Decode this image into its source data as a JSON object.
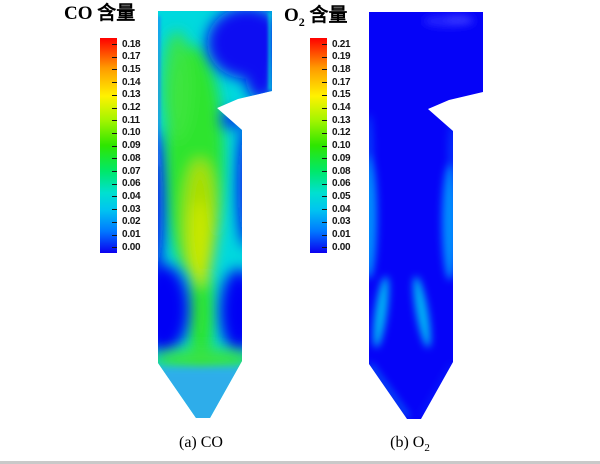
{
  "figure": {
    "left_panel": {
      "title": {
        "pre": "CO",
        "sub": "",
        "post": " 含量"
      },
      "caption": {
        "pre": "(a) CO",
        "sub": ""
      },
      "colorbar_labels": [
        "0.18",
        "0.17",
        "0.15",
        "0.14",
        "0.13",
        "0.12",
        "0.11",
        "0.10",
        "0.09",
        "0.08",
        "0.07",
        "0.06",
        "0.04",
        "0.03",
        "0.02",
        "0.01",
        "0.00"
      ]
    },
    "right_panel": {
      "title": {
        "pre": "O",
        "sub": "2",
        "post": " 含量"
      },
      "caption": {
        "pre": "(b) O",
        "sub": "2"
      },
      "colorbar_labels": [
        "0.21",
        "0.19",
        "0.18",
        "0.17",
        "0.15",
        "0.14",
        "0.13",
        "0.12",
        "0.10",
        "0.09",
        "0.08",
        "0.06",
        "0.05",
        "0.04",
        "0.03",
        "0.01",
        "0.00"
      ]
    },
    "colors": {
      "colorbar_gradient": [
        "#ff0000",
        "#ff9b00",
        "#fff200",
        "#a6f500",
        "#2ee600",
        "#00e86a",
        "#00e0d0",
        "#00c4f0",
        "#0077ff",
        "#0b00f0"
      ],
      "co_base_cyan": "#00d9de",
      "co_plume_green": "#2ee42e",
      "co_core_yellow_green": "#c8e800",
      "co_low_value_blue": "#0606f4",
      "co_hopper_light_blue": "#2fadea",
      "o2_base_blue": "#0503f8",
      "o2_wall_streak_blue": "#0095ff",
      "bottom_rule_gray": "#c9c9c9"
    }
  },
  "chart_data": [
    {
      "type": "heatmap",
      "subtype": "cfd-contour-field",
      "title": "CO 含量",
      "caption": "(a) CO",
      "colorbar": {
        "min": 0.0,
        "max": 0.18,
        "ticks": [
          0.18,
          0.17,
          0.15,
          0.14,
          0.13,
          0.12,
          0.11,
          0.1,
          0.09,
          0.08,
          0.07,
          0.06,
          0.04,
          0.03,
          0.02,
          0.01,
          0.0
        ],
        "position": "left-of-panel",
        "orientation": "vertical",
        "color_order_top_to_bottom": "red-orange-yellow-green-cyan-blue"
      },
      "geometry": "tall furnace column with top-right flue outlet notch (nose) and conical bottom hopper",
      "regions": [
        {
          "name": "central-rising-plume",
          "approx_value": "0.10-0.13",
          "color": "green to yellow-green"
        },
        {
          "name": "interior-background",
          "approx_value": "0.04-0.07",
          "color": "cyan"
        },
        {
          "name": "top-right-outlet-zone",
          "approx_value": "0.00-0.02",
          "color": "dark blue"
        },
        {
          "name": "left-and-right-wall-lower-lobes",
          "approx_value": "0.00-0.02",
          "color": "dark blue"
        },
        {
          "name": "hopper-cone",
          "approx_value": "0.03-0.04",
          "color": "light sky blue"
        }
      ]
    },
    {
      "type": "heatmap",
      "subtype": "cfd-contour-field",
      "title": "O2 含量",
      "caption": "(b) O2",
      "colorbar": {
        "min": 0.0,
        "max": 0.21,
        "ticks": [
          0.21,
          0.19,
          0.18,
          0.17,
          0.15,
          0.14,
          0.13,
          0.12,
          0.1,
          0.09,
          0.08,
          0.06,
          0.05,
          0.04,
          0.03,
          0.01,
          0.0
        ],
        "position": "left-of-panel",
        "orientation": "vertical",
        "color_order_top_to_bottom": "red-orange-yellow-green-cyan-blue"
      },
      "geometry": "same furnace outline as panel (a)",
      "regions": [
        {
          "name": "bulk-interior",
          "approx_value": "0.00-0.01",
          "color": "pure blue"
        },
        {
          "name": "side-wall-streaks-mid-height",
          "approx_value": "0.03-0.05",
          "color": "lighter blue/cyan"
        },
        {
          "name": "hopper-wall-v-streaks",
          "approx_value": "0.04-0.06",
          "color": "cyan"
        },
        {
          "name": "top-right-swoosh",
          "approx_value": "0.01-0.02",
          "color": "slightly lighter blue"
        }
      ]
    }
  ]
}
